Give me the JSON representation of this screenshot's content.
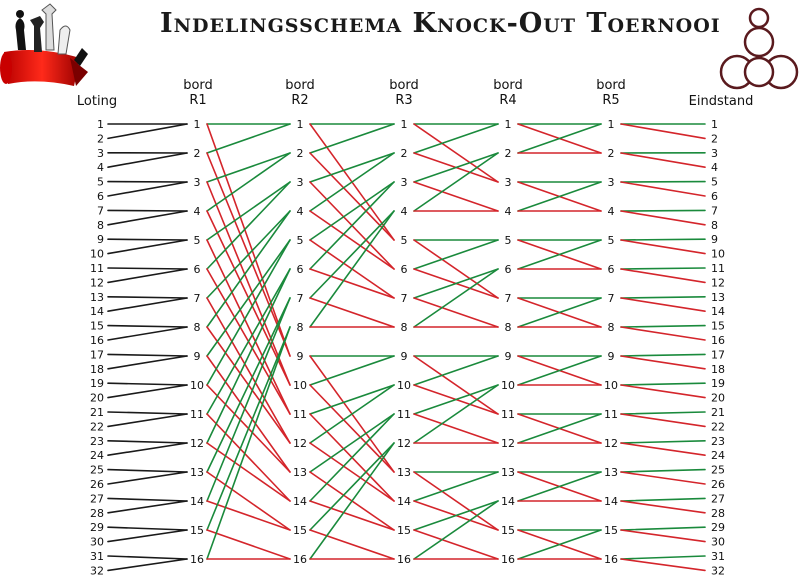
{
  "title": "Indelingsschema Knock-Out Toernooi",
  "headers": {
    "loting": "Loting",
    "bord_word": "bord",
    "rounds": [
      "R1",
      "R2",
      "R3",
      "R4",
      "R5"
    ],
    "eindstand": "Eindstand"
  },
  "colors": {
    "initial": "#1a1a1a",
    "winner": "#1a8a3c",
    "loser": "#d4252b"
  },
  "lottery_positions": 32,
  "boards_per_round": 16,
  "round_links": [
    {
      "from": "Loting",
      "to": "R1",
      "color": "initial",
      "pattern": "positions 2k-1 and 2k meet at board k"
    },
    {
      "from": "R1",
      "to": "R2",
      "color": "winner",
      "pattern": "winner board k -> R2 board ceil(k/2)"
    },
    {
      "from": "R1",
      "to": "R2",
      "color": "loser",
      "pattern": "loser board k -> R2 board 8+ceil(k/2)"
    },
    {
      "from": "R2",
      "to": "R3",
      "color": "mixed",
      "pattern": "groups of 4 boards regrouped"
    },
    {
      "from": "R3",
      "to": "R4",
      "color": "mixed",
      "pattern": "groups of 4 boards regrouped"
    },
    {
      "from": "R4",
      "to": "R5",
      "color": "mixed",
      "pattern": "pairs of boards swap"
    },
    {
      "from": "R5",
      "to": "Eindstand",
      "color": "mixed",
      "pattern": "winner board k -> place 2k-1, loser -> place 2k"
    }
  ]
}
